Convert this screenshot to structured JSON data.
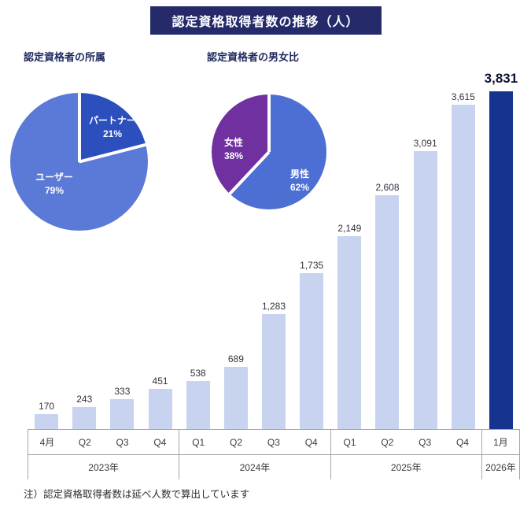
{
  "title": "認定資格取得者数の推移（人）",
  "note": "注）認定資格取得者数は延べ人数で算出しています",
  "colors": {
    "title_bg": "#252b6a",
    "bar": "#c7d3ef",
    "bar_final": "#16338f",
    "axis_line": "#a6a6a6"
  },
  "chart_data": [
    {
      "type": "pie",
      "title": "認定資格者の所属",
      "labels": [
        "パートナー",
        "ユーザー"
      ],
      "pct": [
        "21%",
        "79%"
      ],
      "values": [
        21,
        79
      ],
      "colors": [
        "#2b50bd",
        "#5b79d6"
      ]
    },
    {
      "type": "pie",
      "title": "認定資格者の男女比",
      "labels": [
        "男性",
        "女性"
      ],
      "pct": [
        "62%",
        "38%"
      ],
      "values": [
        62,
        38
      ],
      "colors": [
        "#4d6ed3",
        "#7030a0"
      ]
    },
    {
      "type": "bar",
      "title": "認定資格取得者数の推移（人）",
      "categories": [
        "4月",
        "Q2",
        "Q3",
        "Q4",
        "Q1",
        "Q2",
        "Q3",
        "Q4",
        "Q1",
        "Q2",
        "Q3",
        "Q4",
        "1月"
      ],
      "values": [
        170,
        243,
        333,
        451,
        538,
        689,
        1283,
        1735,
        2149,
        2608,
        3091,
        3615,
        3831
      ],
      "value_labels": [
        "170",
        "243",
        "333",
        "451",
        "538",
        "689",
        "1,283",
        "1,735",
        "2,149",
        "2,608",
        "3,091",
        "3,615",
        "3,831"
      ],
      "year_groups": [
        {
          "label": "2023年",
          "span": 4
        },
        {
          "label": "2024年",
          "span": 4
        },
        {
          "label": "2025年",
          "span": 4
        },
        {
          "label": "2026年",
          "span": 1
        }
      ],
      "ylim": [
        0,
        3831
      ],
      "ylabel": "",
      "xlabel": "",
      "grid": false,
      "legend": "none",
      "highlight_last": true
    }
  ]
}
